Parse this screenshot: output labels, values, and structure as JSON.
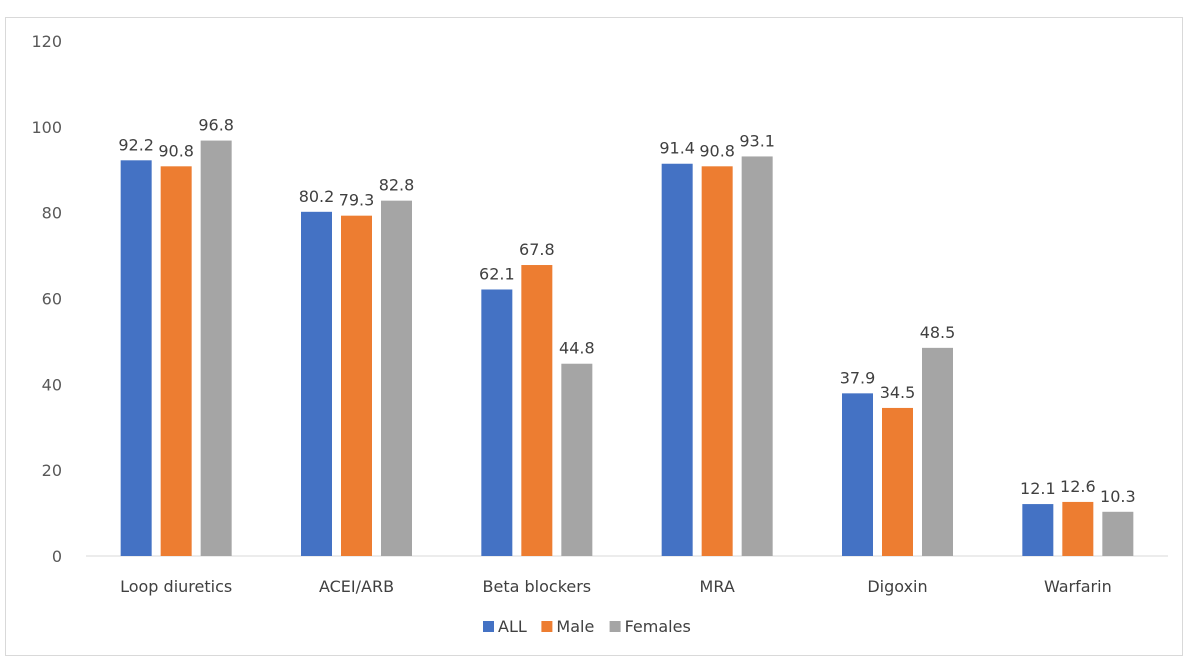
{
  "chart_data": {
    "type": "bar",
    "categories": [
      "Loop diuretics",
      "ACEI/ARB",
      "Beta blockers",
      "MRA",
      "Digoxin",
      "Warfarin"
    ],
    "series": [
      {
        "name": "ALL",
        "color": "#4472c4",
        "values": [
          92.2,
          80.2,
          62.1,
          91.4,
          37.9,
          12.1
        ]
      },
      {
        "name": "Male",
        "color": "#ed7d31",
        "values": [
          90.8,
          79.3,
          67.8,
          90.8,
          34.5,
          12.6
        ]
      },
      {
        "name": "Females",
        "color": "#a5a5a5",
        "values": [
          96.8,
          82.8,
          44.8,
          93.1,
          48.5,
          10.3
        ]
      }
    ],
    "title": "",
    "xlabel": "",
    "ylabel": "",
    "ylim": [
      0,
      120
    ],
    "yticks": [
      "0",
      "20",
      "40",
      "60",
      "80",
      "100",
      "120"
    ],
    "grid": false,
    "data_labels": true,
    "legend_position": "bottom"
  }
}
